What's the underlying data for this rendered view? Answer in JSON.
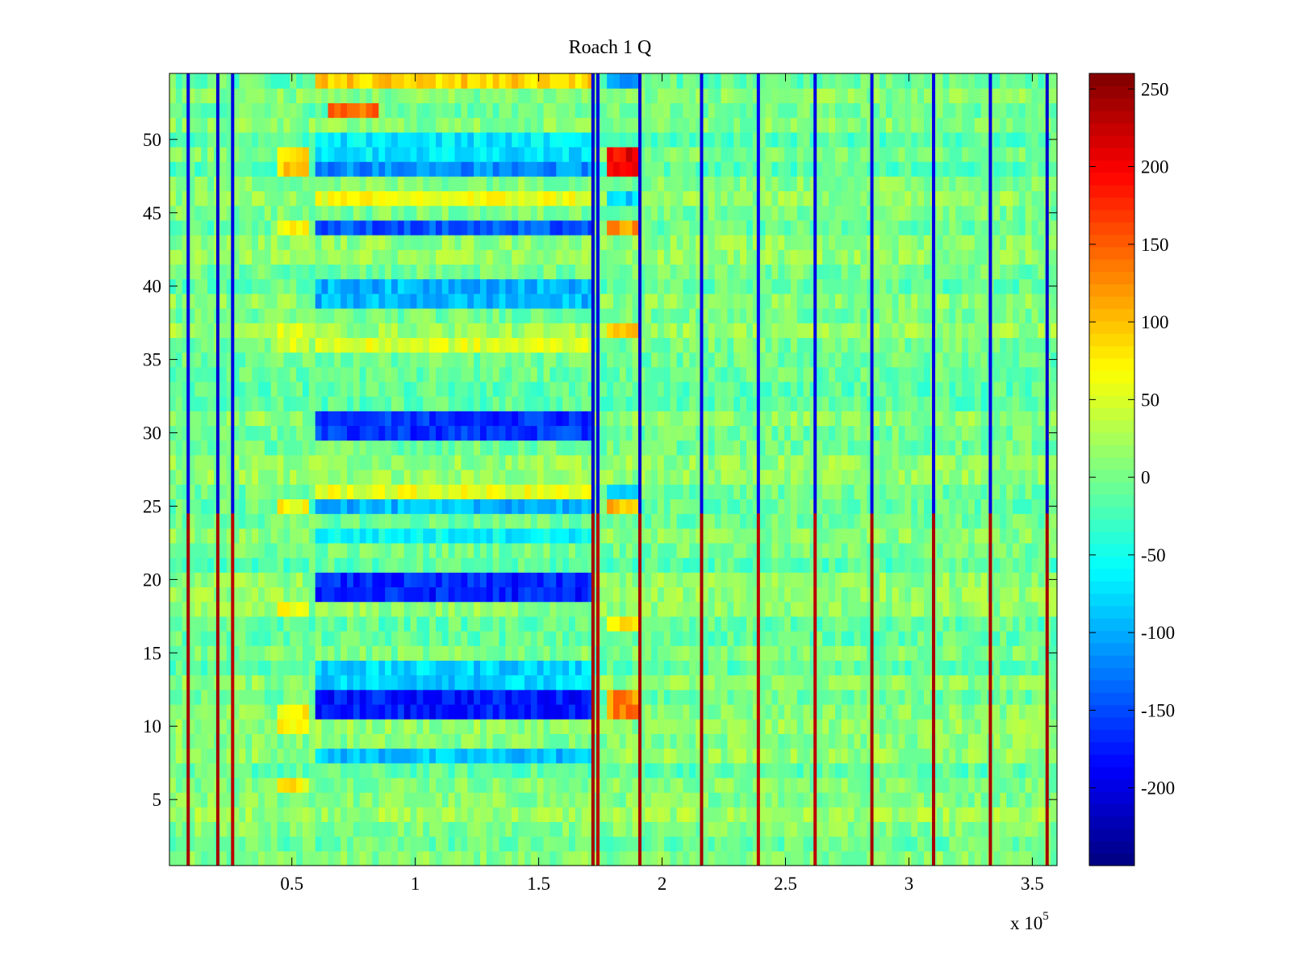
{
  "chart_data": {
    "type": "heatmap",
    "title": "Roach 1 Q",
    "xlabel": "",
    "ylabel": "",
    "x_multiplier_label": {
      "base": "x 10",
      "exponent": "5"
    },
    "xlim": [
      0.004,
      3.6
    ],
    "ylim": [
      0.5,
      54.5
    ],
    "n_rows": 54,
    "x_ticks": [
      {
        "value": 0.5,
        "label": "0.5"
      },
      {
        "value": 1.0,
        "label": "1"
      },
      {
        "value": 1.5,
        "label": "1.5"
      },
      {
        "value": 2.0,
        "label": "2"
      },
      {
        "value": 2.5,
        "label": "2.5"
      },
      {
        "value": 3.0,
        "label": "3"
      },
      {
        "value": 3.5,
        "label": "3.5"
      }
    ],
    "y_ticks": [
      {
        "value": 5,
        "label": "5"
      },
      {
        "value": 10,
        "label": "10"
      },
      {
        "value": 15,
        "label": "15"
      },
      {
        "value": 20,
        "label": "20"
      },
      {
        "value": 25,
        "label": "25"
      },
      {
        "value": 30,
        "label": "30"
      },
      {
        "value": 35,
        "label": "35"
      },
      {
        "value": 40,
        "label": "40"
      },
      {
        "value": 45,
        "label": "45"
      },
      {
        "value": 50,
        "label": "50"
      }
    ],
    "colorbar": {
      "colormap": "jet",
      "clim": [
        -250,
        260
      ],
      "ticks": [
        {
          "value": 250,
          "label": "250"
        },
        {
          "value": 200,
          "label": "200"
        },
        {
          "value": 150,
          "label": "150"
        },
        {
          "value": 100,
          "label": "100"
        },
        {
          "value": 50,
          "label": "50"
        },
        {
          "value": 0,
          "label": "0"
        },
        {
          "value": -50,
          "label": "-50"
        },
        {
          "value": -100,
          "label": "-100"
        },
        {
          "value": -150,
          "label": "-150"
        },
        {
          "value": -200,
          "label": "-200"
        }
      ]
    },
    "background_level": 0,
    "blocks": [
      {
        "x": [
          0.6,
          1.73
        ],
        "rows": [
          11,
          12
        ],
        "value": -175
      },
      {
        "x": [
          0.6,
          1.73
        ],
        "rows": [
          19,
          20
        ],
        "value": -170
      },
      {
        "x": [
          0.6,
          1.73
        ],
        "rows": [
          30,
          31
        ],
        "value": -160
      },
      {
        "x": [
          0.6,
          1.73
        ],
        "rows": [
          44,
          44
        ],
        "value": -145
      },
      {
        "x": [
          0.6,
          1.73
        ],
        "rows": [
          48,
          48
        ],
        "value": -115
      },
      {
        "x": [
          0.6,
          1.73
        ],
        "rows": [
          39,
          40
        ],
        "value": -95
      },
      {
        "x": [
          0.6,
          1.73
        ],
        "rows": [
          13,
          14
        ],
        "value": -80
      },
      {
        "x": [
          0.6,
          1.73
        ],
        "rows": [
          8,
          8
        ],
        "value": -90
      },
      {
        "x": [
          0.6,
          1.73
        ],
        "rows": [
          25,
          25
        ],
        "value": -95
      },
      {
        "x": [
          0.6,
          1.73
        ],
        "rows": [
          49,
          50
        ],
        "value": -70
      },
      {
        "x": [
          0.6,
          1.73
        ],
        "rows": [
          23,
          23
        ],
        "value": -60
      },
      {
        "x": [
          0.6,
          1.73
        ],
        "rows": [
          26,
          26
        ],
        "value": 55
      },
      {
        "x": [
          0.6,
          1.73
        ],
        "rows": [
          36,
          36
        ],
        "value": 50
      },
      {
        "x": [
          0.6,
          1.73
        ],
        "rows": [
          46,
          46
        ],
        "value": 60
      },
      {
        "x": [
          0.6,
          1.73
        ],
        "rows": [
          54,
          54
        ],
        "value": 90
      },
      {
        "x": [
          0.65,
          0.85
        ],
        "rows": [
          52,
          52
        ],
        "value": 140
      },
      {
        "x": [
          0.45,
          0.58
        ],
        "rows": [
          10,
          11
        ],
        "value": 80
      },
      {
        "x": [
          0.45,
          0.58
        ],
        "rows": [
          25,
          25
        ],
        "value": 70
      },
      {
        "x": [
          0.45,
          0.58
        ],
        "rows": [
          44,
          44
        ],
        "value": 80
      },
      {
        "x": [
          0.45,
          0.58
        ],
        "rows": [
          48,
          49
        ],
        "value": 90
      },
      {
        "x": [
          0.45,
          0.58
        ],
        "rows": [
          6,
          6
        ],
        "value": 75
      },
      {
        "x": [
          0.45,
          0.58
        ],
        "rows": [
          18,
          18
        ],
        "value": 60
      },
      {
        "x": [
          0.45,
          0.58
        ],
        "rows": [
          36,
          37
        ],
        "value": 55
      },
      {
        "x": [
          1.78,
          1.9
        ],
        "rows": [
          48,
          49
        ],
        "value": 200
      },
      {
        "x": [
          1.78,
          1.9
        ],
        "rows": [
          44,
          44
        ],
        "value": 120
      },
      {
        "x": [
          1.78,
          1.9
        ],
        "rows": [
          37,
          37
        ],
        "value": 110
      },
      {
        "x": [
          1.78,
          1.9
        ],
        "rows": [
          11,
          12
        ],
        "value": 130
      },
      {
        "x": [
          1.78,
          1.9
        ],
        "rows": [
          17,
          17
        ],
        "value": 90
      },
      {
        "x": [
          1.78,
          1.9
        ],
        "rows": [
          25,
          25
        ],
        "value": 100
      },
      {
        "x": [
          1.78,
          1.9
        ],
        "rows": [
          54,
          54
        ],
        "value": -110
      },
      {
        "x": [
          1.78,
          1.9
        ],
        "rows": [
          26,
          26
        ],
        "value": -90
      },
      {
        "x": [
          1.78,
          1.9
        ],
        "rows": [
          46,
          46
        ],
        "value": -80
      }
    ],
    "vertical_lines": [
      {
        "x": 0.08,
        "top_value": -200,
        "bottom_value": 240
      },
      {
        "x": 0.2,
        "top_value": -210,
        "bottom_value": 240
      },
      {
        "x": 0.26,
        "top_value": -200,
        "bottom_value": 230
      },
      {
        "x": 1.72,
        "top_value": -210,
        "bottom_value": 240
      },
      {
        "x": 1.74,
        "top_value": -200,
        "bottom_value": 230
      },
      {
        "x": 1.91,
        "top_value": -210,
        "bottom_value": 240
      },
      {
        "x": 2.16,
        "top_value": -200,
        "bottom_value": 240
      },
      {
        "x": 2.39,
        "top_value": -190,
        "bottom_value": 230
      },
      {
        "x": 2.62,
        "top_value": -200,
        "bottom_value": 230
      },
      {
        "x": 2.85,
        "top_value": -200,
        "bottom_value": 240
      },
      {
        "x": 3.1,
        "top_value": -200,
        "bottom_value": 240
      },
      {
        "x": 3.33,
        "top_value": -200,
        "bottom_value": 240
      },
      {
        "x": 3.56,
        "top_value": -210,
        "bottom_value": 240
      }
    ]
  }
}
